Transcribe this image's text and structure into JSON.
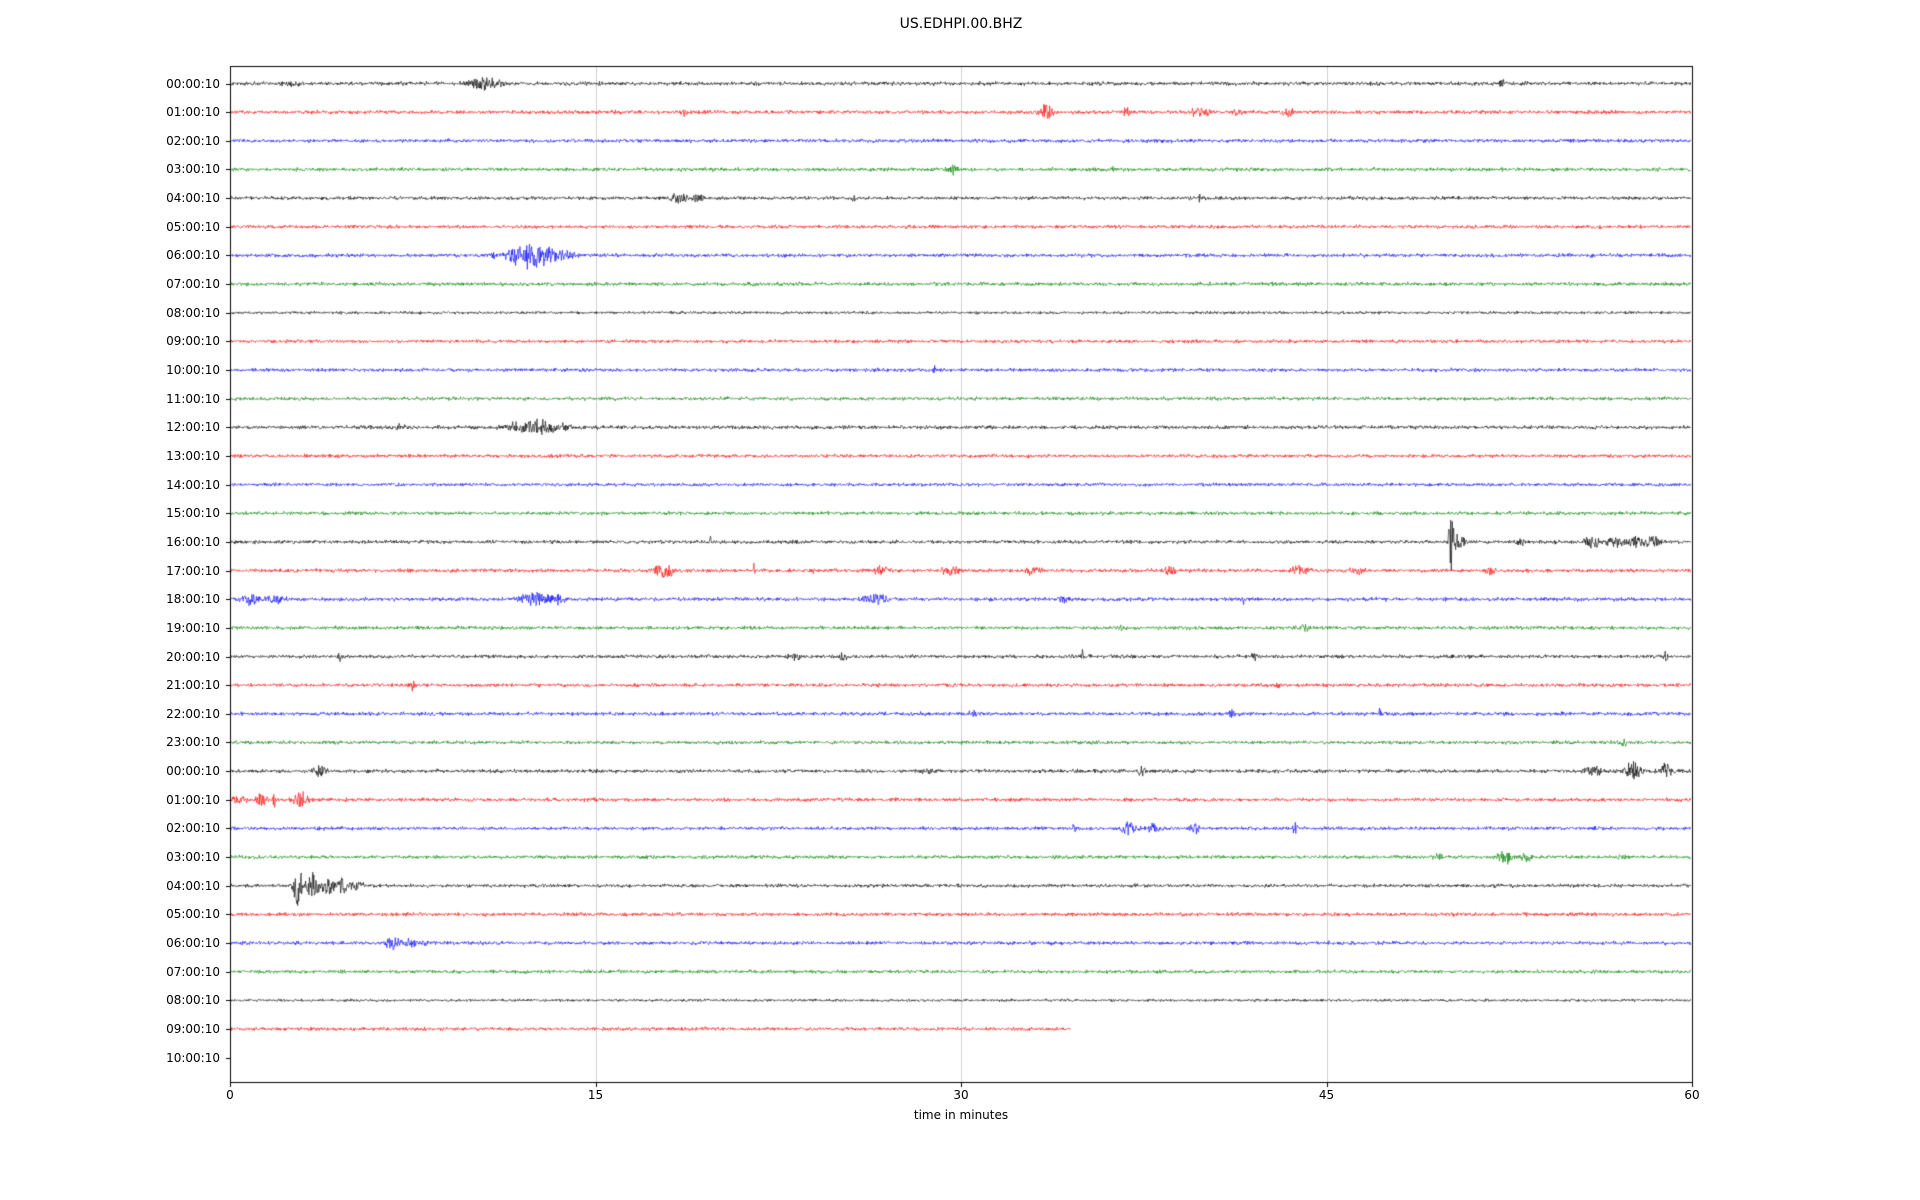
{
  "title": "US.EDHPI.00.BHZ",
  "chart_data": {
    "type": "line",
    "variant": "seismic-helicorder-dayplot",
    "title": "US.EDHPI.00.BHZ",
    "xlabel": "time in minutes",
    "xlim": [
      0,
      60
    ],
    "x_ticks": [
      "0",
      "15",
      "30",
      "45",
      "60"
    ],
    "x_tick_values": [
      0,
      15,
      30,
      45,
      60
    ],
    "grid": "vertical gridlines at 15, 30, 45 minutes",
    "minutes_per_row": 60,
    "color_cycle": [
      "#000000",
      "#ff0000",
      "#0000ff",
      "#008000"
    ],
    "events_format": "[minute, amplitude_px, width_minutes]",
    "rows": [
      {
        "label": "00:00:10",
        "color": "#000000",
        "end_minute": 60,
        "noise_amp": 2.6,
        "events": [
          [
            2.5,
            3,
            0.4
          ],
          [
            10.4,
            6,
            0.7
          ],
          [
            11.0,
            4,
            0.35
          ],
          [
            52.2,
            6,
            0.1
          ]
        ]
      },
      {
        "label": "01:00:10",
        "color": "#ff0000",
        "end_minute": 60,
        "noise_amp": 2.5,
        "events": [
          [
            18.6,
            3,
            0.2
          ],
          [
            33.5,
            8,
            0.35
          ],
          [
            36.8,
            4,
            0.2
          ],
          [
            39.8,
            5,
            0.45
          ],
          [
            41.3,
            4,
            0.25
          ],
          [
            43.4,
            6,
            0.25
          ]
        ]
      },
      {
        "label": "02:00:10",
        "color": "#0000ff",
        "end_minute": 60,
        "noise_amp": 2.5,
        "events": []
      },
      {
        "label": "03:00:10",
        "color": "#008000",
        "end_minute": 60,
        "noise_amp": 2.5,
        "events": [
          [
            29.7,
            5,
            0.25
          ],
          [
            36.2,
            2.5,
            0.2
          ]
        ]
      },
      {
        "label": "04:00:10",
        "color": "#000000",
        "end_minute": 60,
        "noise_amp": 2.4,
        "events": [
          [
            18.4,
            6,
            0.4
          ],
          [
            19.2,
            4,
            0.3
          ],
          [
            25.6,
            3,
            0.25
          ],
          [
            39.8,
            5,
            0.06
          ]
        ]
      },
      {
        "label": "05:00:10",
        "color": "#ff0000",
        "end_minute": 60,
        "noise_amp": 2.4,
        "events": []
      },
      {
        "label": "06:00:10",
        "color": "#0000ff",
        "end_minute": 60,
        "noise_amp": 2.5,
        "events": [
          [
            10.9,
            4,
            0.3
          ],
          [
            11.6,
            7,
            0.45
          ],
          [
            12.4,
            13,
            0.55
          ],
          [
            13.1,
            8,
            0.5
          ],
          [
            13.9,
            5,
            0.4
          ]
        ]
      },
      {
        "label": "07:00:10",
        "color": "#008000",
        "end_minute": 60,
        "noise_amp": 2.5,
        "events": []
      },
      {
        "label": "08:00:10",
        "color": "#000000",
        "end_minute": 60,
        "noise_amp": 2.0,
        "events": []
      },
      {
        "label": "09:00:10",
        "color": "#ff0000",
        "end_minute": 60,
        "noise_amp": 2.3,
        "events": []
      },
      {
        "label": "10:00:10",
        "color": "#0000ff",
        "end_minute": 60,
        "noise_amp": 2.4,
        "events": [
          [
            28.9,
            5,
            0.07
          ]
        ]
      },
      {
        "label": "11:00:10",
        "color": "#008000",
        "end_minute": 60,
        "noise_amp": 2.4,
        "events": []
      },
      {
        "label": "12:00:10",
        "color": "#000000",
        "end_minute": 60,
        "noise_amp": 2.5,
        "events": [
          [
            6.9,
            3,
            0.3
          ],
          [
            11.9,
            6,
            0.7
          ],
          [
            12.9,
            8,
            0.6
          ],
          [
            13.7,
            5,
            0.35
          ]
        ]
      },
      {
        "label": "13:00:10",
        "color": "#ff0000",
        "end_minute": 60,
        "noise_amp": 2.4,
        "events": []
      },
      {
        "label": "14:00:10",
        "color": "#0000ff",
        "end_minute": 60,
        "noise_amp": 2.3,
        "events": []
      },
      {
        "label": "15:00:10",
        "color": "#008000",
        "end_minute": 60,
        "noise_amp": 2.4,
        "events": []
      },
      {
        "label": "16:00:10",
        "color": "#000000",
        "end_minute": 60,
        "noise_amp": 2.4,
        "events": [
          [
            19.7,
            8,
            0.05
          ],
          [
            50.1,
            30,
            0.1
          ],
          [
            50.4,
            8,
            0.3
          ],
          [
            53.0,
            4,
            0.2
          ],
          [
            55.9,
            6,
            0.35
          ],
          [
            56.8,
            6,
            0.35
          ],
          [
            57.6,
            7,
            0.45
          ],
          [
            58.4,
            6,
            0.35
          ]
        ]
      },
      {
        "label": "17:00:10",
        "color": "#ff0000",
        "end_minute": 60,
        "noise_amp": 2.5,
        "events": [
          [
            17.8,
            7,
            0.45
          ],
          [
            21.5,
            14,
            0.04
          ],
          [
            24.0,
            3,
            0.2
          ],
          [
            26.7,
            5,
            0.3
          ],
          [
            29.6,
            6,
            0.35
          ],
          [
            33.0,
            5,
            0.35
          ],
          [
            38.6,
            5,
            0.3
          ],
          [
            43.9,
            5,
            0.35
          ],
          [
            46.3,
            4,
            0.3
          ],
          [
            51.8,
            4,
            0.3
          ]
        ]
      },
      {
        "label": "18:00:10",
        "color": "#0000ff",
        "end_minute": 60,
        "noise_amp": 2.6,
        "events": [
          [
            0.9,
            6,
            0.5
          ],
          [
            1.9,
            4,
            0.35
          ],
          [
            12.5,
            7,
            0.7
          ],
          [
            13.5,
            5,
            0.4
          ],
          [
            26.5,
            6,
            0.5
          ],
          [
            34.2,
            3,
            0.3
          ],
          [
            41.6,
            7,
            0.08
          ]
        ]
      },
      {
        "label": "19:00:10",
        "color": "#008000",
        "end_minute": 60,
        "noise_amp": 2.4,
        "events": [
          [
            36.6,
            5,
            0.12
          ],
          [
            44.0,
            4,
            0.35
          ]
        ]
      },
      {
        "label": "20:00:10",
        "color": "#000000",
        "end_minute": 60,
        "noise_amp": 2.4,
        "events": [
          [
            4.5,
            6,
            0.08
          ],
          [
            23.2,
            4,
            0.35
          ],
          [
            25.1,
            4,
            0.2
          ],
          [
            35.0,
            7,
            0.06
          ],
          [
            42.1,
            4,
            0.25
          ],
          [
            58.9,
            6,
            0.08
          ]
        ]
      },
      {
        "label": "21:00:10",
        "color": "#ff0000",
        "end_minute": 60,
        "noise_amp": 2.4,
        "events": [
          [
            7.5,
            6,
            0.12
          ],
          [
            43.0,
            3,
            0.2
          ]
        ]
      },
      {
        "label": "22:00:10",
        "color": "#0000ff",
        "end_minute": 60,
        "noise_amp": 2.5,
        "events": [
          [
            30.6,
            3,
            0.3
          ],
          [
            41.1,
            4,
            0.2
          ],
          [
            47.2,
            6,
            0.08
          ]
        ]
      },
      {
        "label": "23:00:10",
        "color": "#008000",
        "end_minute": 60,
        "noise_amp": 2.4,
        "events": [
          [
            57.2,
            6,
            0.1
          ]
        ]
      },
      {
        "label": "00:00:10",
        "color": "#000000",
        "end_minute": 60,
        "noise_amp": 2.5,
        "events": [
          [
            3.7,
            6,
            0.35
          ],
          [
            28.6,
            3,
            0.25
          ],
          [
            37.4,
            6,
            0.15
          ],
          [
            56.0,
            6,
            0.45
          ],
          [
            57.6,
            10,
            0.35
          ],
          [
            58.9,
            9,
            0.3
          ]
        ]
      },
      {
        "label": "01:00:10",
        "color": "#ff0000",
        "end_minute": 60,
        "noise_amp": 2.5,
        "events": [
          [
            0.4,
            5,
            0.3
          ],
          [
            1.3,
            7,
            0.25
          ],
          [
            1.8,
            11,
            0.08
          ],
          [
            2.9,
            8,
            0.35
          ]
        ]
      },
      {
        "label": "02:00:10",
        "color": "#0000ff",
        "end_minute": 60,
        "noise_amp": 2.4,
        "events": [
          [
            34.6,
            3,
            0.2
          ],
          [
            36.9,
            7,
            0.35
          ],
          [
            37.9,
            5,
            0.3
          ],
          [
            39.6,
            5,
            0.25
          ],
          [
            43.7,
            9,
            0.08
          ]
        ]
      },
      {
        "label": "03:00:10",
        "color": "#008000",
        "end_minute": 60,
        "noise_amp": 2.4,
        "events": [
          [
            49.6,
            3,
            0.2
          ],
          [
            52.3,
            7,
            0.35
          ],
          [
            53.2,
            5,
            0.3
          ],
          [
            57.1,
            3,
            0.2
          ]
        ]
      },
      {
        "label": "04:00:10",
        "color": "#000000",
        "end_minute": 60,
        "noise_amp": 2.4,
        "events": [
          [
            2.6,
            12,
            0.06
          ],
          [
            2.8,
            20,
            0.2
          ],
          [
            3.4,
            13,
            0.3
          ],
          [
            4.0,
            10,
            0.35
          ],
          [
            4.6,
            8,
            0.3
          ],
          [
            5.2,
            5,
            0.3
          ]
        ]
      },
      {
        "label": "05:00:10",
        "color": "#ff0000",
        "end_minute": 60,
        "noise_amp": 2.5,
        "events": []
      },
      {
        "label": "06:00:10",
        "color": "#0000ff",
        "end_minute": 60,
        "noise_amp": 2.4,
        "events": [
          [
            6.7,
            7,
            0.3
          ],
          [
            7.4,
            5,
            0.3
          ],
          [
            8.1,
            3,
            0.25
          ]
        ]
      },
      {
        "label": "07:00:10",
        "color": "#008000",
        "end_minute": 60,
        "noise_amp": 2.4,
        "events": []
      },
      {
        "label": "08:00:10",
        "color": "#000000",
        "end_minute": 60,
        "noise_amp": 1.8,
        "events": []
      },
      {
        "label": "09:00:10",
        "color": "#ff0000",
        "end_minute": 34.5,
        "noise_amp": 2.4,
        "events": []
      },
      {
        "label": "10:00:10",
        "color": "#0000ff",
        "end_minute": 0,
        "noise_amp": 0,
        "events": []
      }
    ]
  }
}
